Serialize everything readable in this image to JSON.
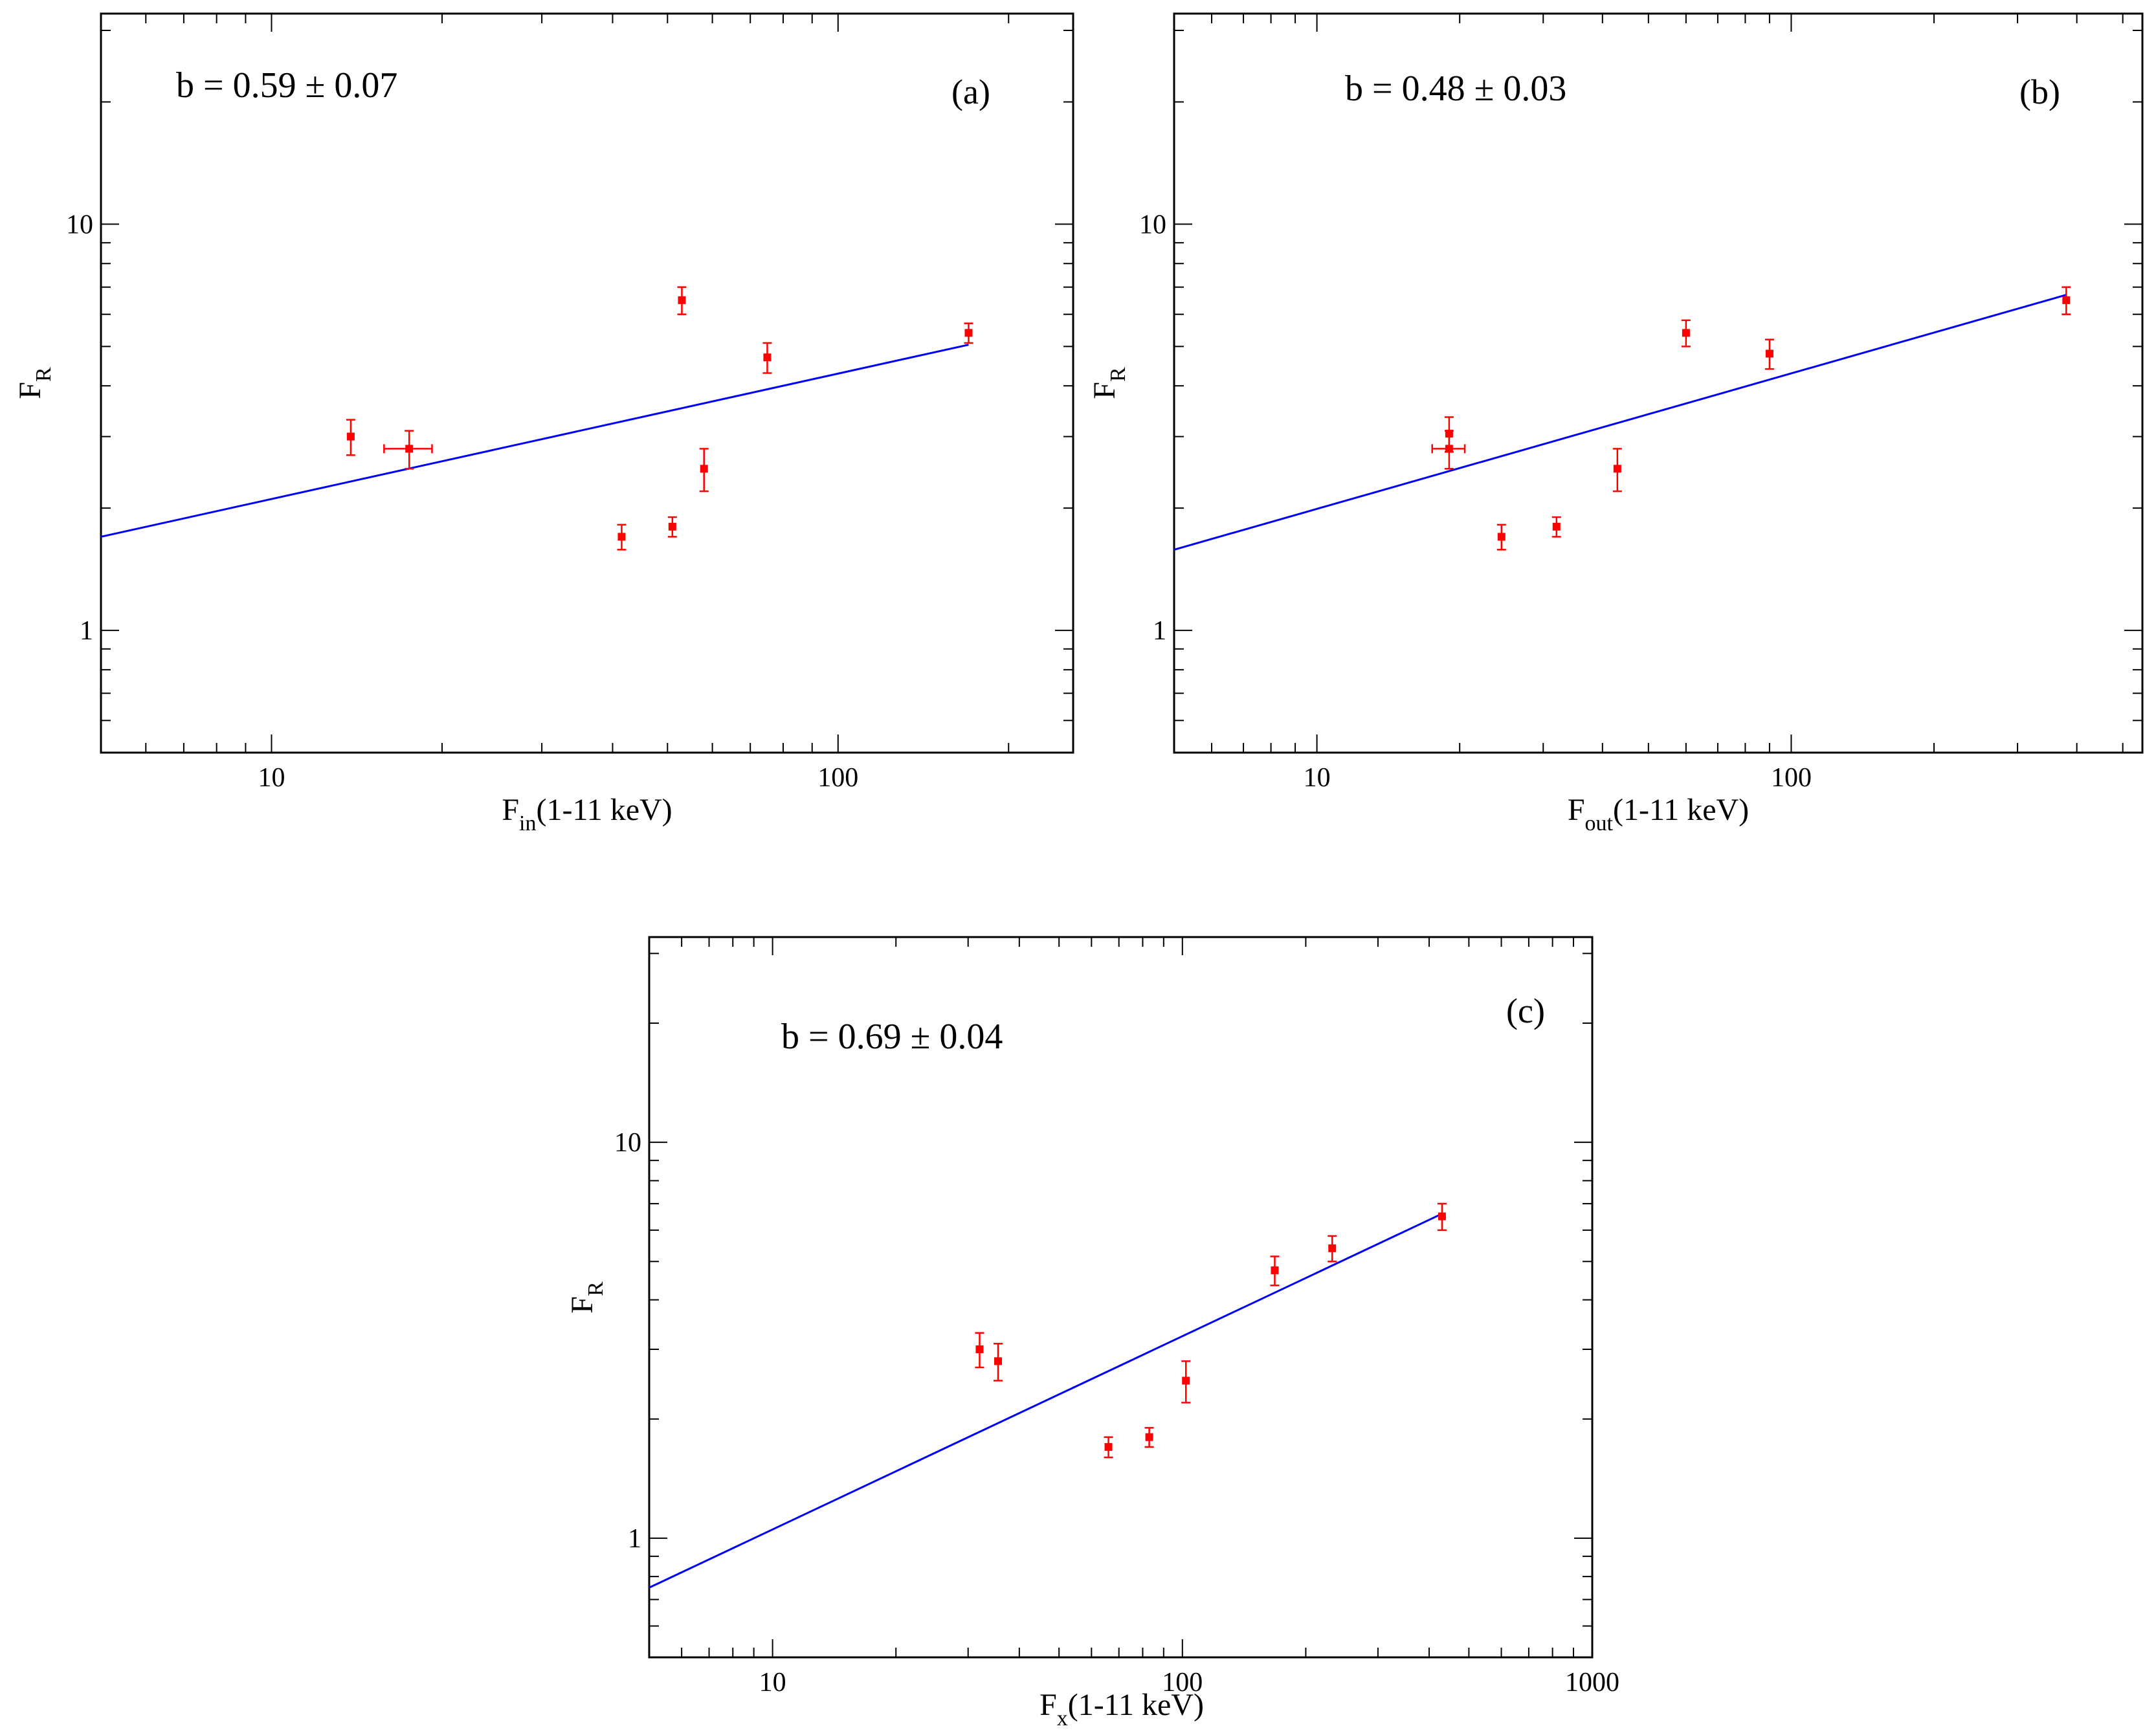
{
  "colors": {
    "fit": "#0000ff",
    "points": "#ff0000",
    "axes": "#000000"
  },
  "chart_data": [
    {
      "type": "scatter",
      "scale": "log-log",
      "panel": "(a)",
      "annotation": "b = 0.59 ± 0.07",
      "xlabel": {
        "main": "F",
        "sub": "in",
        "rest": "(1-11 keV)"
      },
      "ylabel": {
        "main": "F",
        "sub": "R"
      },
      "xlim": [
        5,
        260
      ],
      "ylim": [
        0.5,
        33
      ],
      "xticks": [
        {
          "value": 10,
          "label": "10"
        },
        {
          "value": 100,
          "label": "100"
        }
      ],
      "yticks": [
        {
          "value": 1,
          "label": "1"
        },
        {
          "value": 10,
          "label": "10"
        }
      ],
      "points": [
        {
          "x": 13.8,
          "y": 3.0,
          "yerr": 0.3
        },
        {
          "x": 17.5,
          "y": 2.8,
          "yerr": 0.3,
          "xerr": 1.7
        },
        {
          "x": 41.5,
          "y": 1.7,
          "yerr": 0.12
        },
        {
          "x": 51.0,
          "y": 1.8,
          "yerr": 0.1
        },
        {
          "x": 53.0,
          "y": 6.5,
          "yerr": 0.5
        },
        {
          "x": 58.0,
          "y": 2.5,
          "yerr": 0.3
        },
        {
          "x": 75.0,
          "y": 4.7,
          "yerr": 0.4
        },
        {
          "x": 170.0,
          "y": 5.4,
          "yerr": 0.3
        }
      ],
      "fit": {
        "x": [
          5,
          170
        ],
        "y": [
          1.7,
          5.05
        ]
      }
    },
    {
      "type": "scatter",
      "scale": "log-log",
      "panel": "(b)",
      "annotation": "b = 0.48 ± 0.03",
      "xlabel": {
        "main": "F",
        "sub": "out",
        "rest": "(1-11 keV)"
      },
      "ylabel": {
        "main": "F",
        "sub": "R"
      },
      "xlim": [
        5,
        550
      ],
      "ylim": [
        0.5,
        33
      ],
      "xticks": [
        {
          "value": 10,
          "label": "10"
        },
        {
          "value": 100,
          "label": "100"
        }
      ],
      "yticks": [
        {
          "value": 1,
          "label": "1"
        },
        {
          "value": 10,
          "label": "10"
        }
      ],
      "points": [
        {
          "x": 19.0,
          "y": 3.05,
          "yerr": 0.3
        },
        {
          "x": 19.0,
          "y": 2.8,
          "yerr": 0.3,
          "xerr": 1.5
        },
        {
          "x": 24.5,
          "y": 1.7,
          "yerr": 0.12
        },
        {
          "x": 32.0,
          "y": 1.8,
          "yerr": 0.1
        },
        {
          "x": 43.0,
          "y": 2.5,
          "yerr": 0.3
        },
        {
          "x": 60.0,
          "y": 5.4,
          "yerr": 0.4
        },
        {
          "x": 90.0,
          "y": 4.8,
          "yerr": 0.4
        },
        {
          "x": 380.0,
          "y": 6.5,
          "yerr": 0.5
        }
      ],
      "fit": {
        "x": [
          5,
          380
        ],
        "y": [
          1.58,
          6.7
        ]
      }
    },
    {
      "type": "scatter",
      "scale": "log-log",
      "panel": "(c)",
      "annotation": "b = 0.69 ± 0.04",
      "xlabel": {
        "main": "F",
        "sub": "x",
        "rest": "(1-11 keV)"
      },
      "ylabel": {
        "main": "F",
        "sub": "R"
      },
      "xlim": [
        5,
        1000
      ],
      "ylim": [
        0.5,
        33
      ],
      "xticks": [
        {
          "value": 10,
          "label": "10"
        },
        {
          "value": 100,
          "label": "100"
        },
        {
          "value": 1000,
          "label": "1000"
        }
      ],
      "yticks": [
        {
          "value": 1,
          "label": "1"
        },
        {
          "value": 10,
          "label": "10"
        }
      ],
      "points": [
        {
          "x": 32.0,
          "y": 3.0,
          "yerr": 0.3
        },
        {
          "x": 35.5,
          "y": 2.8,
          "yerr": 0.3
        },
        {
          "x": 66.0,
          "y": 1.7,
          "yerr": 0.1
        },
        {
          "x": 83.0,
          "y": 1.8,
          "yerr": 0.1
        },
        {
          "x": 102.0,
          "y": 2.5,
          "yerr": 0.3
        },
        {
          "x": 168.0,
          "y": 4.75,
          "yerr": 0.4
        },
        {
          "x": 232.0,
          "y": 5.4,
          "yerr": 0.4
        },
        {
          "x": 430.0,
          "y": 6.5,
          "yerr": 0.5
        }
      ],
      "fit": {
        "x": [
          5,
          430
        ],
        "y": [
          0.75,
          6.6
        ]
      }
    }
  ]
}
